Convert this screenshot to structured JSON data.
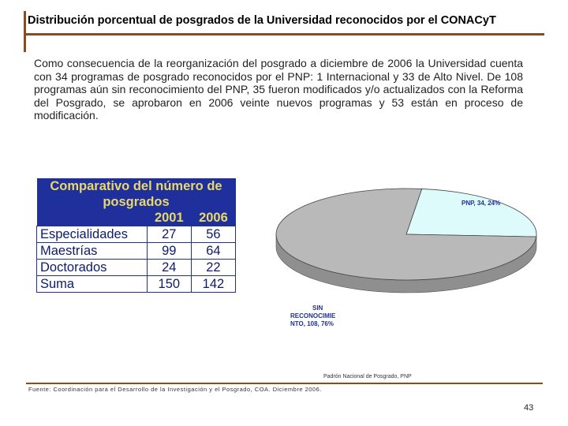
{
  "header": {
    "title": "Distribución porcentual de posgrados de la Universidad reconocidos por el CONACyT"
  },
  "body": {
    "paragraph": "Como consecuencia de la reorganización del posgrado a diciembre de 2006 la Universidad cuenta con 34 programas de posgrado reconocidos por el PNP: 1 Internacional y 33 de Alto Nivel. De 108 programas aún sin reconocimiento del PNP, 35 fueron modificados y/o actualizados con la Reforma del Posgrado, se aprobaron en 2006 veinte nuevos programas y 53 están en proceso de modificación."
  },
  "table": {
    "title_line1": "Comparativo del número de",
    "title_line2": "posgrados",
    "col1": "2001",
    "col2": "2006",
    "rows": [
      {
        "label": "Especialidades",
        "v2001": "27",
        "v2006": "56"
      },
      {
        "label": "Maestrías",
        "v2001": "99",
        "v2006": "64"
      },
      {
        "label": "Doctorados",
        "v2001": "24",
        "v2006": "22"
      },
      {
        "label": "Suma",
        "v2001": "150",
        "v2006": "142"
      }
    ]
  },
  "chart_data": {
    "type": "pie",
    "slices": [
      {
        "label_lines": [
          "PNP, 34, 24%"
        ],
        "value": 34,
        "percent": 24,
        "color": "#ddfbfb"
      },
      {
        "label_lines": [
          "SIN",
          "RECONOCIMIE",
          "NTO, 108, 76%"
        ],
        "value": 108,
        "percent": 76,
        "color": "#b9b9b9"
      }
    ],
    "label_color": "#1f2f9b"
  },
  "footer": {
    "chart_source": "Padrón Nacional de Posgrado, PNP",
    "source": "Fuente: Coordinación para el Desarrollo de la Investigación y el Posgrado, COA. Diciembre 2006.",
    "page_number": "43"
  }
}
